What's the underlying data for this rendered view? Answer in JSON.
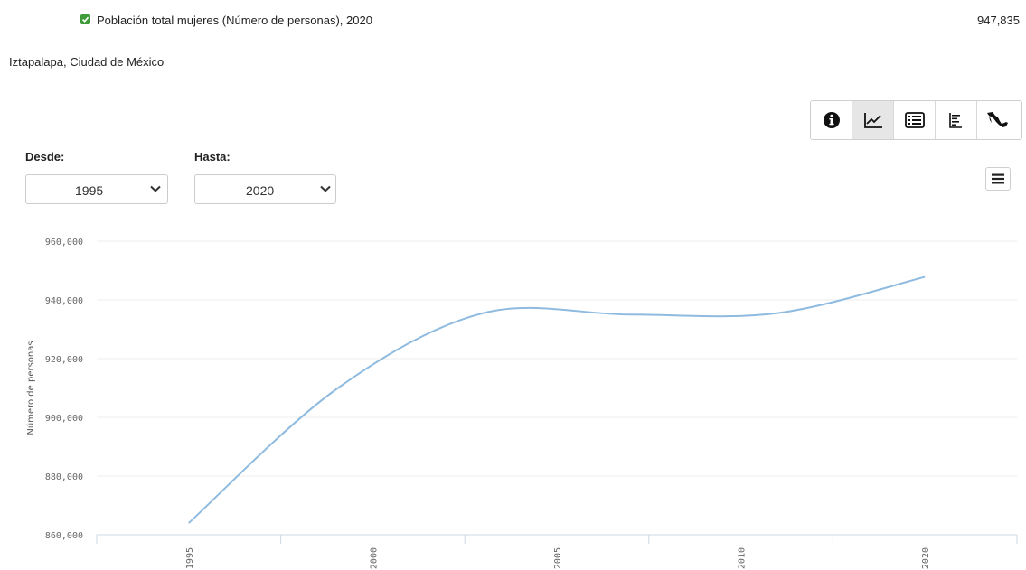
{
  "header": {
    "indicator_label": "Población total mujeres (Número de personas), 2020",
    "total_value": "947,835",
    "checkbox_checked": true
  },
  "location": "Iztapalapa, Ciudad de México",
  "toolbar": {
    "buttons": [
      {
        "icon": "info-icon",
        "active": false
      },
      {
        "icon": "line-chart-icon",
        "active": true
      },
      {
        "icon": "table-icon",
        "active": false
      },
      {
        "icon": "bar-list-icon",
        "active": false
      },
      {
        "icon": "mexico-map-icon",
        "active": false
      }
    ]
  },
  "filters": {
    "desde_label": "Desde:",
    "desde_value": "1995",
    "hasta_label": "Hasta:",
    "hasta_value": "2020"
  },
  "colors": {
    "accent": "#3f9b3a",
    "line": "#8fbbe0"
  },
  "chart_data": {
    "type": "line",
    "ylabel": "Número de personas",
    "xlabel": "",
    "ylim": [
      860000,
      960000
    ],
    "y_ticks": [
      "860,000",
      "880,000",
      "900,000",
      "920,000",
      "940,000",
      "960,000"
    ],
    "x_ticks": [
      "1995",
      "2000",
      "2005",
      "2010",
      "2020"
    ],
    "grid": true,
    "series": [
      {
        "x": [
          1995,
          2000,
          2005,
          2010,
          2015,
          2020
        ],
        "values": [
          864000,
          909500,
          935500,
          935000,
          935500,
          947835
        ]
      }
    ]
  }
}
